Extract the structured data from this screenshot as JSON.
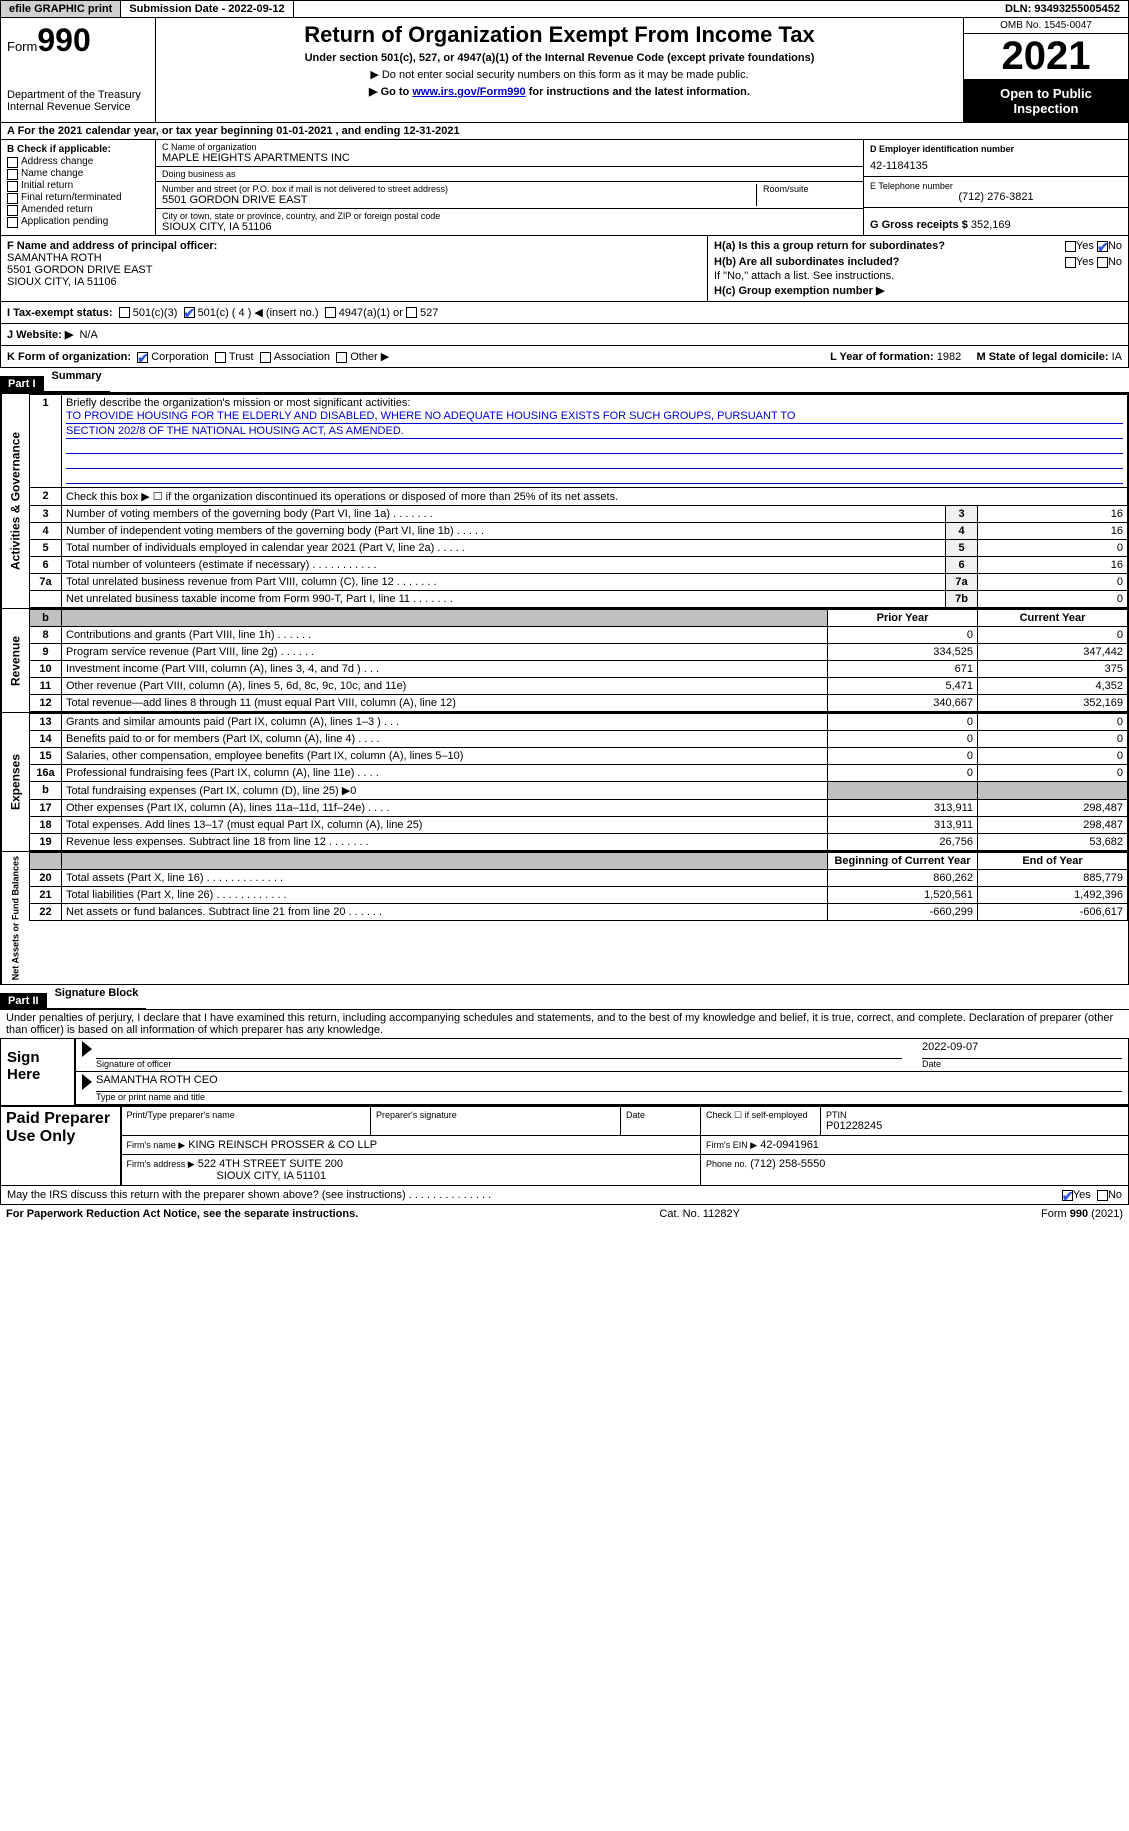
{
  "topbar": {
    "efile": "efile GRAPHIC print",
    "submission": "Submission Date - 2022-09-12",
    "dln": "DLN: 93493255005452"
  },
  "header": {
    "form_prefix": "Form",
    "form_num": "990",
    "dept": "Department of the Treasury",
    "irs": "Internal Revenue Service",
    "title": "Return of Organization Exempt From Income Tax",
    "sub1": "Under section 501(c), 527, or 4947(a)(1) of the Internal Revenue Code (except private foundations)",
    "sub2": "▶ Do not enter social security numbers on this form as it may be made public.",
    "sub3_pre": "▶ Go to ",
    "sub3_link": "www.irs.gov/Form990",
    "sub3_post": " for instructions and the latest information.",
    "omb": "OMB No. 1545-0047",
    "year": "2021",
    "inspect": "Open to Public Inspection"
  },
  "line_a": "A For the 2021 calendar year, or tax year beginning 01-01-2021   , and ending 12-31-2021",
  "box_b": {
    "heading": "B Check if applicable:",
    "opts": [
      "Address change",
      "Name change",
      "Initial return",
      "Final return/terminated",
      "Amended return",
      "Application pending"
    ]
  },
  "box_c": {
    "name_lbl": "C Name of organization",
    "name": "MAPLE HEIGHTS APARTMENTS INC",
    "dba_lbl": "Doing business as",
    "dba": "",
    "addr_lbl": "Number and street (or P.O. box if mail is not delivered to street address)",
    "addr": "5501 GORDON DRIVE EAST",
    "room_lbl": "Room/suite",
    "city_lbl": "City or town, state or province, country, and ZIP or foreign postal code",
    "city": "SIOUX CITY, IA  51106"
  },
  "box_d": {
    "ein_lbl": "D Employer identification number",
    "ein": "42-1184135",
    "tel_lbl": "E Telephone number",
    "tel": "(712) 276-3821",
    "gross_lbl": "G Gross receipts $",
    "gross": "352,169"
  },
  "box_f": {
    "lbl": "F  Name and address of principal officer:",
    "name": "SAMANTHA ROTH",
    "addr1": "5501 GORDON DRIVE EAST",
    "addr2": "SIOUX CITY, IA  51106"
  },
  "box_h": {
    "a": "H(a)  Is this a group return for subordinates?",
    "yes": "Yes",
    "no": "No",
    "b": "H(b)  Are all subordinates included?",
    "note": "If \"No,\" attach a list. See instructions.",
    "c": "H(c)  Group exemption number ▶"
  },
  "tax_status": {
    "lbl": "I   Tax-exempt status:",
    "o1": "501(c)(3)",
    "o2": "501(c) ( 4 ) ◀ (insert no.)",
    "o3": "4947(a)(1) or",
    "o4": "527"
  },
  "website": {
    "lbl": "J   Website: ▶",
    "val": "N/A"
  },
  "line_k": {
    "lbl": "K Form of organization:",
    "o1": "Corporation",
    "o2": "Trust",
    "o3": "Association",
    "o4": "Other ▶",
    "l_year_lbl": "L Year of formation:",
    "l_year": "1982",
    "m_state_lbl": "M State of legal domicile:",
    "m_state": "IA"
  },
  "part1": {
    "hdr": "Part I",
    "title": "Summary",
    "q1": "Briefly describe the organization's mission or most significant activities:",
    "mission1": "TO PROVIDE HOUSING FOR THE ELDERLY AND DISABLED, WHERE NO ADEQUATE HOUSING EXISTS FOR SUCH GROUPS, PURSUANT TO",
    "mission2": "SECTION 202/8 OF THE NATIONAL HOUSING ACT, AS AMENDED.",
    "q2": "Check this box ▶ ☐  if the organization discontinued its operations or disposed of more than 25% of its net assets.",
    "sides": {
      "ag": "Activities & Governance",
      "rev": "Revenue",
      "exp": "Expenses",
      "na": "Net Assets or Fund Balances"
    },
    "rows_ag": [
      {
        "n": "3",
        "t": "Number of voting members of the governing body (Part VI, line 1a)  .    .    .    .    .    .    .",
        "b": "3",
        "v": "16"
      },
      {
        "n": "4",
        "t": "Number of independent voting members of the governing body (Part VI, line 1b)  .    .    .    .    .",
        "b": "4",
        "v": "16"
      },
      {
        "n": "5",
        "t": "Total number of individuals employed in calendar year 2021 (Part V, line 2a)  .    .    .    .    .",
        "b": "5",
        "v": "0"
      },
      {
        "n": "6",
        "t": "Total number of volunteers (estimate if necessary)   .    .    .    .    .    .    .    .    .    .    .",
        "b": "6",
        "v": "16"
      },
      {
        "n": "7a",
        "t": "Total unrelated business revenue from Part VIII, column (C), line 12   .    .    .    .    .    .    .",
        "b": "7a",
        "v": "0"
      },
      {
        "n": "",
        "t": "Net unrelated business taxable income from Form 990-T, Part I, line 11  .    .    .    .    .    .    .",
        "b": "7b",
        "v": "0"
      }
    ],
    "hdr_py": "Prior Year",
    "hdr_cy": "Current Year",
    "rows_rev": [
      {
        "n": "8",
        "t": "Contributions and grants (Part VIII, line 1h)   .    .    .    .    .    .",
        "py": "0",
        "cy": "0"
      },
      {
        "n": "9",
        "t": "Program service revenue (Part VIII, line 2g)   .    .    .    .    .    .",
        "py": "334,525",
        "cy": "347,442"
      },
      {
        "n": "10",
        "t": "Investment income (Part VIII, column (A), lines 3, 4, and 7d )   .    .    .",
        "py": "671",
        "cy": "375"
      },
      {
        "n": "11",
        "t": "Other revenue (Part VIII, column (A), lines 5, 6d, 8c, 9c, 10c, and 11e)",
        "py": "5,471",
        "cy": "4,352"
      },
      {
        "n": "12",
        "t": "Total revenue—add lines 8 through 11 (must equal Part VIII, column (A), line 12)",
        "py": "340,667",
        "cy": "352,169"
      }
    ],
    "rows_exp": [
      {
        "n": "13",
        "t": "Grants and similar amounts paid (Part IX, column (A), lines 1–3 )  .    .    .",
        "py": "0",
        "cy": "0"
      },
      {
        "n": "14",
        "t": "Benefits paid to or for members (Part IX, column (A), line 4)  .    .    .    .",
        "py": "0",
        "cy": "0"
      },
      {
        "n": "15",
        "t": "Salaries, other compensation, employee benefits (Part IX, column (A), lines 5–10)",
        "py": "0",
        "cy": "0"
      },
      {
        "n": "16a",
        "t": "Professional fundraising fees (Part IX, column (A), line 11e)  .    .    .    .",
        "py": "0",
        "cy": "0"
      },
      {
        "n": "b",
        "t": "Total fundraising expenses (Part IX, column (D), line 25) ▶0",
        "py": "",
        "cy": "",
        "grey": true
      },
      {
        "n": "17",
        "t": "Other expenses (Part IX, column (A), lines 11a–11d, 11f–24e)  .    .    .    .",
        "py": "313,911",
        "cy": "298,487"
      },
      {
        "n": "18",
        "t": "Total expenses. Add lines 13–17 (must equal Part IX, column (A), line 25)",
        "py": "313,911",
        "cy": "298,487"
      },
      {
        "n": "19",
        "t": "Revenue less expenses. Subtract line 18 from line 12  .    .    .    .    .    .    .",
        "py": "26,756",
        "cy": "53,682"
      }
    ],
    "hdr_boy": "Beginning of Current Year",
    "hdr_eoy": "End of Year",
    "rows_na": [
      {
        "n": "20",
        "t": "Total assets (Part X, line 16)  .    .    .    .    .    .    .    .    .    .    .    .    .",
        "py": "860,262",
        "cy": "885,779"
      },
      {
        "n": "21",
        "t": "Total liabilities (Part X, line 26)  .    .    .    .    .    .    .    .    .    .    .    .",
        "py": "1,520,561",
        "cy": "1,492,396"
      },
      {
        "n": "22",
        "t": "Net assets or fund balances. Subtract line 21 from line 20  .    .    .    .    .    .",
        "py": "-660,299",
        "cy": "-606,617"
      }
    ]
  },
  "part2": {
    "hdr": "Part II",
    "title": "Signature Block",
    "decl": "Under penalties of perjury, I declare that I have examined this return, including accompanying schedules and statements, and to the best of my knowledge and belief, it is true, correct, and complete. Declaration of preparer (other than officer) is based on all information of which preparer has any knowledge.",
    "sign_here": "Sign Here",
    "sig_of_officer": "Signature of officer",
    "date_lbl": "Date",
    "sig_date": "2022-09-07",
    "officer_name": "SAMANTHA ROTH CEO",
    "type_name_lbl": "Type or print name and title",
    "paid_lbl": "Paid Preparer Use Only",
    "pp_name_lbl": "Print/Type preparer's name",
    "pp_sig_lbl": "Preparer's signature",
    "pp_date_lbl": "Date",
    "pp_check_lbl": "Check ☐ if self-employed",
    "ptin_lbl": "PTIN",
    "ptin": "P01228245",
    "firm_name_lbl": "Firm's name    ▶",
    "firm_name": "KING REINSCH PROSSER & CO LLP",
    "firm_ein_lbl": "Firm's EIN ▶",
    "firm_ein": "42-0941961",
    "firm_addr_lbl": "Firm's address ▶",
    "firm_addr1": "522 4TH STREET SUITE 200",
    "firm_addr2": "SIOUX CITY, IA  51101",
    "phone_lbl": "Phone no.",
    "phone": "(712) 258-5550",
    "discuss": "May the IRS discuss this return with the preparer shown above? (see instructions)   .    .    .    .    .    .    .    .    .    .    .    .    .    .",
    "yes": "Yes",
    "no": "No"
  },
  "footer": {
    "pra": "For Paperwork Reduction Act Notice, see the separate instructions.",
    "cat": "Cat. No. 11282Y",
    "form": "Form 990 (2021)"
  },
  "colors": {
    "link": "#0000cc",
    "check": "#3355dd",
    "grey": "#c0c0c0"
  }
}
